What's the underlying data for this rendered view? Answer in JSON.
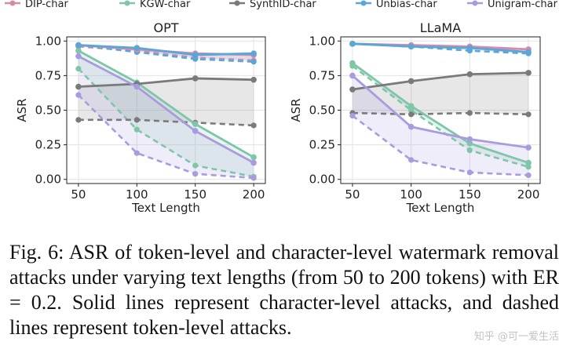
{
  "legend": [
    {
      "name": "DIP-char",
      "color": "#d88aa8"
    },
    {
      "name": "KGW-char",
      "color": "#7fc6a8"
    },
    {
      "name": "SynthID-char",
      "color": "#7a7a7a"
    },
    {
      "name": "Unbias-char",
      "color": "#5aa6d6"
    },
    {
      "name": "Unigram-char",
      "color": "#a99be0"
    }
  ],
  "chart_data": [
    {
      "type": "line",
      "title": "OPT",
      "xlabel": "Text Length",
      "ylabel": "ASR",
      "x": [
        50,
        100,
        150,
        200
      ],
      "xticks": [
        "50",
        "100",
        "150",
        "200"
      ],
      "yticks": [
        "0.00",
        "0.25",
        "0.50",
        "0.75",
        "1.00"
      ],
      "ylim": [
        -0.03,
        1.03
      ],
      "grid": true,
      "series": [
        {
          "method": "DIP",
          "color": "#d88aa8",
          "char": [
            0.97,
            0.94,
            0.91,
            0.9
          ],
          "token": [
            0.96,
            0.93,
            0.88,
            0.86
          ]
        },
        {
          "method": "KGW",
          "color": "#7fc6a8",
          "char": [
            0.93,
            0.7,
            0.4,
            0.16
          ],
          "token": [
            0.8,
            0.36,
            0.1,
            0.02
          ]
        },
        {
          "method": "SynthID",
          "color": "#7a7a7a",
          "char": [
            0.67,
            0.69,
            0.73,
            0.72
          ],
          "token": [
            0.43,
            0.43,
            0.41,
            0.39
          ]
        },
        {
          "method": "Unbias",
          "color": "#5aa6d6",
          "char": [
            0.97,
            0.95,
            0.9,
            0.91
          ],
          "token": [
            0.97,
            0.92,
            0.87,
            0.85
          ]
        },
        {
          "method": "Unigram",
          "color": "#a99be0",
          "char": [
            0.89,
            0.67,
            0.35,
            0.12
          ],
          "token": [
            0.61,
            0.19,
            0.04,
            0.01
          ]
        }
      ]
    },
    {
      "type": "line",
      "title": "LLaMA",
      "xlabel": "Text Length",
      "ylabel": "ASR",
      "x": [
        50,
        100,
        150,
        200
      ],
      "xticks": [
        "50",
        "100",
        "150",
        "200"
      ],
      "yticks": [
        "0.00",
        "0.25",
        "0.50",
        "0.75",
        "1.00"
      ],
      "ylim": [
        -0.03,
        1.03
      ],
      "grid": true,
      "series": [
        {
          "method": "DIP",
          "color": "#d88aa8",
          "char": [
            0.98,
            0.97,
            0.96,
            0.94
          ],
          "token": [
            0.98,
            0.96,
            0.95,
            0.92
          ]
        },
        {
          "method": "KGW",
          "color": "#7fc6a8",
          "char": [
            0.84,
            0.53,
            0.26,
            0.12
          ],
          "token": [
            0.82,
            0.5,
            0.21,
            0.09
          ]
        },
        {
          "method": "SynthID",
          "color": "#7a7a7a",
          "char": [
            0.65,
            0.71,
            0.76,
            0.77
          ],
          "token": [
            0.48,
            0.47,
            0.48,
            0.47
          ]
        },
        {
          "method": "Unbias",
          "color": "#5aa6d6",
          "char": [
            0.98,
            0.96,
            0.95,
            0.92
          ],
          "token": [
            0.98,
            0.96,
            0.93,
            0.91
          ]
        },
        {
          "method": "Unigram",
          "color": "#a99be0",
          "char": [
            0.75,
            0.38,
            0.29,
            0.23
          ],
          "token": [
            0.46,
            0.14,
            0.05,
            0.03
          ]
        }
      ]
    }
  ],
  "caption": "Fig. 6: ASR of token-level and character-level watermark removal attacks under varying text lengths (from 50 to 200 tokens) with ER = 0.2. Solid lines represent character-level attacks, and dashed lines represent token-level attacks.",
  "watermark": "知乎 @可一爱生活"
}
